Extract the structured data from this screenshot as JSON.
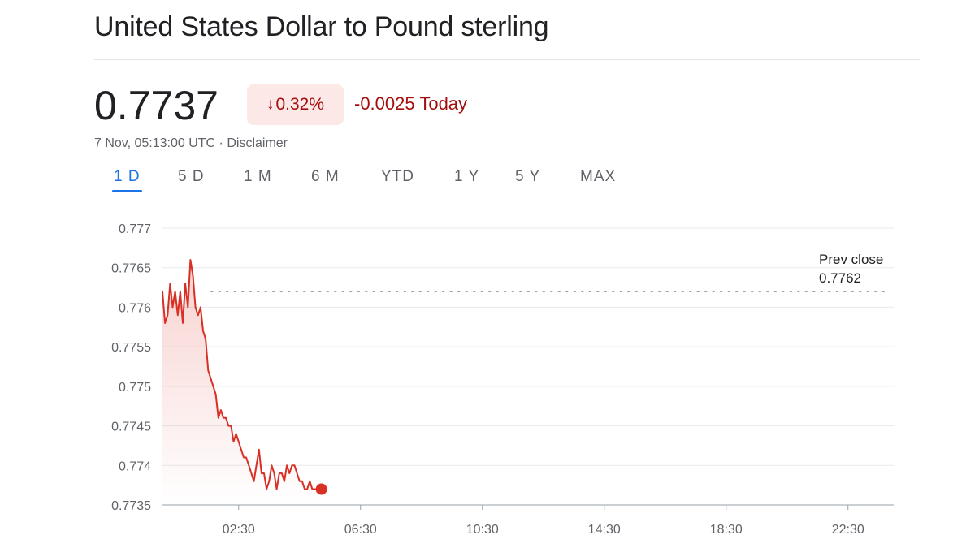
{
  "title": "United States Dollar to Pound sterling",
  "quote": {
    "price": "0.7737",
    "change_arrow": "↓",
    "change_percent": "0.32%",
    "change_today": "-0.0025 Today",
    "timestamp": "7 Nov, 05:13:00 UTC",
    "separator": " · ",
    "disclaimer": "Disclaimer"
  },
  "colors": {
    "line": "#d93025",
    "negative_text": "#a50e0e",
    "badge_bg": "#fce8e6",
    "active_tab": "#1a73e8",
    "grid": "#e8eaed"
  },
  "tabs": [
    {
      "label": "1 D",
      "active": true
    },
    {
      "label": "5 D",
      "active": false
    },
    {
      "label": "1 M",
      "active": false
    },
    {
      "label": "6 M",
      "active": false
    },
    {
      "label": "YTD",
      "active": false
    },
    {
      "label": "1 Y",
      "active": false
    },
    {
      "label": "5 Y",
      "active": false
    },
    {
      "label": "MAX",
      "active": false
    }
  ],
  "chart_data": {
    "type": "area",
    "series": [
      {
        "x": [
          "00:00",
          "00:05",
          "00:10",
          "00:15",
          "00:20",
          "00:25",
          "00:30",
          "00:35",
          "00:40",
          "00:45",
          "00:50",
          "00:55",
          "01:00",
          "01:05",
          "01:10",
          "01:15",
          "01:20",
          "01:25",
          "01:30",
          "01:35",
          "01:40",
          "01:45",
          "01:50",
          "01:55",
          "02:00",
          "02:05",
          "02:10",
          "02:15",
          "02:20",
          "02:25",
          "02:30",
          "02:35",
          "02:40",
          "02:45",
          "02:50",
          "02:55",
          "03:00",
          "03:05",
          "03:10",
          "03:15",
          "03:20",
          "03:25",
          "03:30",
          "03:35",
          "03:40",
          "03:45",
          "03:50",
          "03:55",
          "04:00",
          "04:05",
          "04:10",
          "04:15",
          "04:20",
          "04:25",
          "04:30",
          "04:35",
          "04:40",
          "04:45",
          "04:50",
          "04:55",
          "05:00",
          "05:05",
          "05:13"
        ],
        "values": [
          0.7762,
          0.7758,
          0.7759,
          0.7763,
          0.776,
          0.7762,
          0.7759,
          0.7762,
          0.7758,
          0.7763,
          0.776,
          0.7766,
          0.7764,
          0.776,
          0.7759,
          0.776,
          0.7757,
          0.7756,
          0.7752,
          0.7751,
          0.775,
          0.7749,
          0.7746,
          0.7747,
          0.7746,
          0.7746,
          0.7745,
          0.7745,
          0.7743,
          0.7744,
          0.7743,
          0.7742,
          0.7741,
          0.7741,
          0.774,
          0.7739,
          0.7738,
          0.774,
          0.7742,
          0.7739,
          0.7739,
          0.7737,
          0.7738,
          0.774,
          0.7739,
          0.7737,
          0.7739,
          0.7739,
          0.7738,
          0.774,
          0.7739,
          0.774,
          0.774,
          0.7739,
          0.7738,
          0.7738,
          0.7737,
          0.7737,
          0.7738,
          0.7737,
          0.7737,
          0.7737,
          0.7737
        ]
      }
    ],
    "x_ticks": [
      "02:30",
      "06:30",
      "10:30",
      "14:30",
      "18:30",
      "22:30"
    ],
    "y_ticks": [
      0.7735,
      0.774,
      0.7745,
      0.775,
      0.7755,
      0.776,
      0.7765,
      0.777
    ],
    "y_tick_labels": [
      "0.7735",
      "0.774",
      "0.7745",
      "0.775",
      "0.7755",
      "0.776",
      "0.7765",
      "0.777"
    ],
    "ylim": [
      0.7735,
      0.777
    ],
    "xlim": [
      "00:00",
      "24:00"
    ],
    "prev_close": {
      "label": "Prev close",
      "value": 0.7762,
      "value_label": "0.7762"
    },
    "grid": true
  }
}
